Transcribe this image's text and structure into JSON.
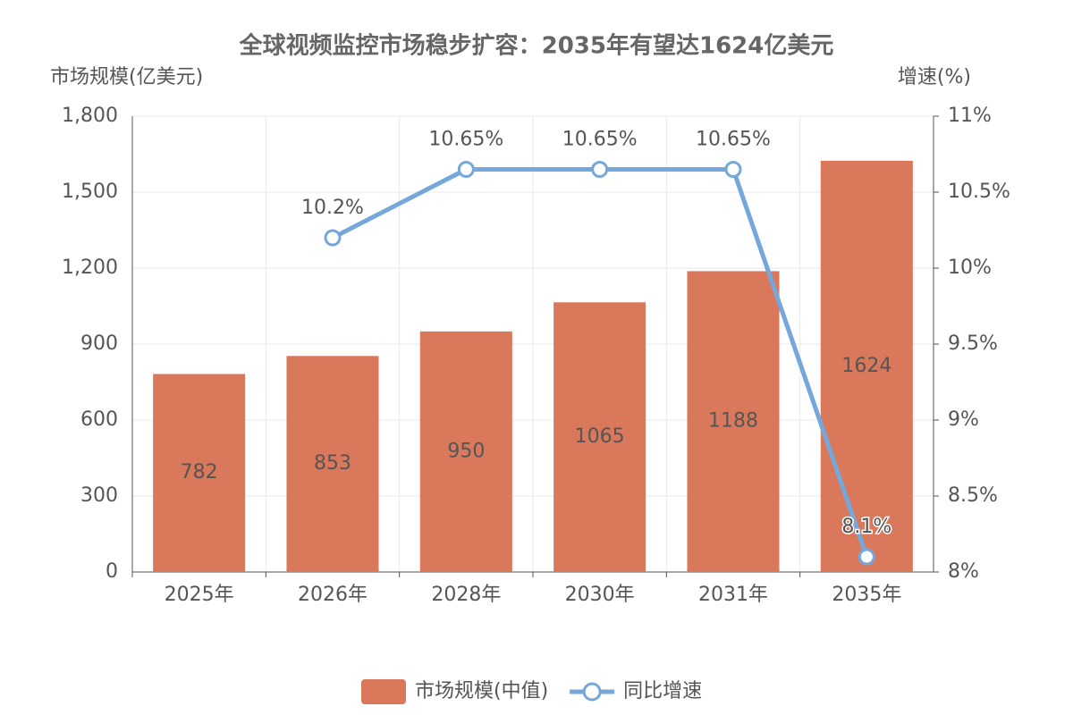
{
  "chart_data": {
    "type": "bar",
    "title": "全球视频监控市场稳步扩容：2035年有望达1624亿美元",
    "y_label": "市场规模(亿美元)",
    "y2_label": "增速(%)",
    "categories": [
      "2025年",
      "2026年",
      "2028年",
      "2030年",
      "2031年",
      "2035年"
    ],
    "series": [
      {
        "name": "市场规模(中值)",
        "type": "bar",
        "color": "#d9785a",
        "values": [
          782,
          853,
          950,
          1065,
          1188,
          1624
        ]
      },
      {
        "name": "同比增速",
        "type": "line",
        "axis": "y2",
        "color": "#76a7db",
        "values": [
          null,
          10.2,
          10.65,
          10.65,
          10.65,
          8.1
        ],
        "value_labels": [
          null,
          "10.2%",
          "10.65%",
          "10.65%",
          "10.65%",
          "8.1%"
        ]
      }
    ],
    "ylim": [
      0,
      1800
    ],
    "yticks": [
      0,
      300,
      600,
      900,
      {
        "value": 1200,
        "label": "1,200"
      },
      {
        "value": 1500,
        "label": "1,500"
      },
      {
        "value": 1800,
        "label": "1,800"
      }
    ],
    "y2lim": [
      8,
      11
    ],
    "y2ticks": [
      {
        "value": 8,
        "label": "8%"
      },
      {
        "value": 8.5,
        "label": "8.5%"
      },
      {
        "value": 9,
        "label": "9%"
      },
      {
        "value": 9.5,
        "label": "9.5%"
      },
      {
        "value": 10,
        "label": "10%"
      },
      {
        "value": 10.5,
        "label": "10.5%"
      },
      {
        "value": 11,
        "label": "11%"
      }
    ],
    "grid": true,
    "legend": "bottom"
  }
}
